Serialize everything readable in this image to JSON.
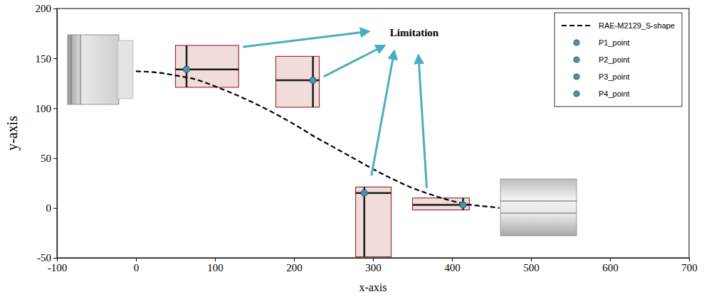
{
  "chart_data": {
    "type": "line",
    "x_label": "x-axis",
    "y_label": "y-axis",
    "annotation": "Limitation",
    "xlim": [
      -100,
      700
    ],
    "xticks": [
      -100,
      0,
      100,
      200,
      300,
      400,
      500,
      600,
      700
    ],
    "ylim": [
      -50,
      200
    ],
    "yticks": [
      -50,
      0,
      50,
      100,
      150,
      200
    ],
    "grid": false,
    "legend": "upper right",
    "series": [
      {
        "name": "RAE-M2129_S-shape",
        "type": "line",
        "line_style": "dashed",
        "color": "#000000",
        "x": [
          0,
          25,
          50,
          75,
          100,
          125,
          150,
          175,
          200,
          225,
          250,
          275,
          300,
          325,
          350,
          375,
          400,
          425,
          450,
          460
        ],
        "values": [
          137,
          136,
          133,
          129,
          122,
          114,
          105,
          95,
          84,
          72,
          61,
          50,
          39,
          29,
          20,
          13,
          7,
          3,
          1,
          0
        ]
      },
      {
        "name": "P1_point",
        "type": "scatter",
        "marker": "circle",
        "color": "#4f94ad",
        "x": [
          64
        ],
        "values": [
          139
        ],
        "x_range": [
          50,
          130
        ],
        "y_range": [
          121,
          163
        ]
      },
      {
        "name": "P2_point",
        "type": "scatter",
        "marker": "circle",
        "color": "#4f94ad",
        "x": [
          224
        ],
        "values": [
          128
        ],
        "x_range": [
          177,
          232
        ],
        "y_range": [
          101,
          152
        ]
      },
      {
        "name": "P3_point",
        "type": "scatter",
        "marker": "circle",
        "color": "#4f94ad",
        "x": [
          289
        ],
        "values": [
          15
        ],
        "x_range": [
          278,
          323
        ],
        "y_range": [
          -49,
          21
        ]
      },
      {
        "name": "P4_point",
        "type": "scatter",
        "marker": "circle",
        "color": "#4f94ad",
        "x": [
          414
        ],
        "values": [
          3
        ],
        "x_range": [
          350,
          422
        ],
        "y_range": [
          -2,
          10
        ]
      }
    ]
  }
}
